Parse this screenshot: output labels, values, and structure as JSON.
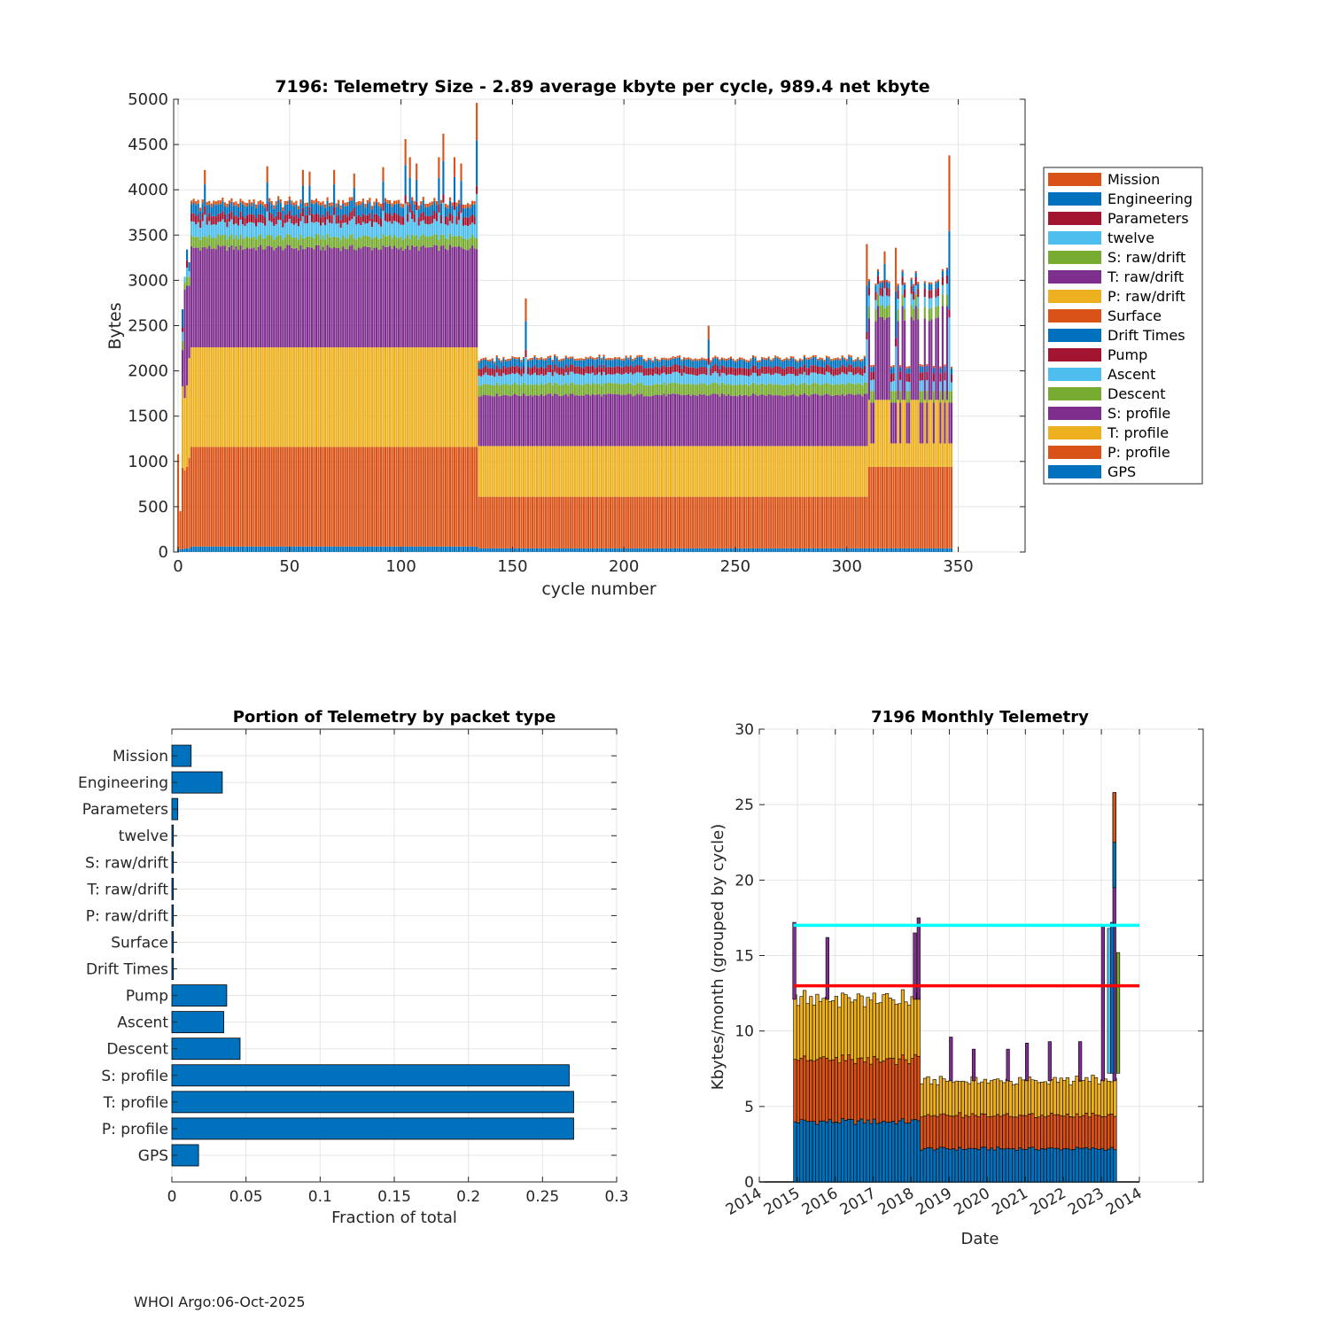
{
  "footer": "WHOI Argo:06-Oct-2025",
  "colors": {
    "orange": "#d95319",
    "blue": "#0072bd",
    "darkred": "#a2142f",
    "lightblue": "#4dbeee",
    "green": "#77ac30",
    "purple": "#7e2f8e",
    "yellow": "#edb120",
    "cyan": "#00ffff",
    "red": "#ff0000"
  },
  "chart_data": [
    {
      "type": "bar",
      "stacked": true,
      "title": "7196: Telemetry Size - 2.89 average kbyte per cycle,  989.4 net kbyte",
      "xlabel": "cycle number",
      "ylabel": "Bytes",
      "xlim": [
        -2,
        380
      ],
      "ylim": [
        0,
        5000
      ],
      "xticks": [
        0,
        50,
        100,
        150,
        200,
        250,
        300,
        350
      ],
      "yticks": [
        0,
        500,
        1000,
        1500,
        2000,
        2500,
        3000,
        3500,
        4000,
        4500,
        5000
      ],
      "grid": true,
      "legend_position": "right",
      "legend": [
        "Mission",
        "Engineering",
        "Parameters",
        "twelve",
        "S: raw/drift",
        "T: raw/drift",
        "P: raw/drift",
        "Surface",
        "Drift Times",
        "Pump",
        "Ascent",
        "Descent",
        "S: profile",
        "T: profile",
        "P: profile",
        "GPS"
      ],
      "legend_colors": [
        "#d95319",
        "#0072bd",
        "#a2142f",
        "#4dbeee",
        "#77ac30",
        "#7e2f8e",
        "#edb120",
        "#d95319",
        "#0072bd",
        "#a2142f",
        "#4dbeee",
        "#77ac30",
        "#7e2f8e",
        "#edb120",
        "#d95319",
        "#0072bd"
      ],
      "segments": [
        {
          "from": 6,
          "to": 134,
          "GPS": 60,
          "P_profile": 1100,
          "T_profile": 1100,
          "S_profile": 1110,
          "Descent": 120,
          "Ascent": 150,
          "Pump": 90,
          "Engineering": 110,
          "Mission": 40
        },
        {
          "from": 135,
          "to": 309,
          "GPS": 40,
          "P_profile": 570,
          "T_profile": 560,
          "S_profile": 570,
          "Descent": 120,
          "Ascent": 110,
          "Pump": 80,
          "Engineering": 80,
          "Mission": 20
        },
        {
          "from": 310,
          "to": 347,
          "GPS": 40,
          "P_profile": 900,
          "T_profile": 740,
          "S_profile": 900,
          "Descent": 130,
          "Ascent": 110,
          "Pump": 90,
          "Engineering": 60,
          "Mission": 20
        }
      ],
      "spikes": [
        {
          "cycle": 12,
          "total": 4220
        },
        {
          "cycle": 40,
          "total": 4260
        },
        {
          "cycle": 56,
          "total": 4220
        },
        {
          "cycle": 59,
          "total": 4200
        },
        {
          "cycle": 70,
          "total": 4220
        },
        {
          "cycle": 79,
          "total": 4180
        },
        {
          "cycle": 92,
          "total": 4250
        },
        {
          "cycle": 102,
          "total": 4560
        },
        {
          "cycle": 104,
          "total": 4360
        },
        {
          "cycle": 107,
          "total": 4290
        },
        {
          "cycle": 117,
          "total": 4360
        },
        {
          "cycle": 119,
          "total": 4620
        },
        {
          "cycle": 124,
          "total": 4360
        },
        {
          "cycle": 127,
          "total": 4290
        },
        {
          "cycle": 134,
          "total": 4960
        },
        {
          "cycle": 156,
          "total": 2800
        },
        {
          "cycle": 238,
          "total": 2500
        },
        {
          "cycle": 309,
          "total": 3400
        },
        {
          "cycle": 317,
          "total": 3320
        },
        {
          "cycle": 322,
          "total": 3360
        },
        {
          "cycle": 346,
          "total": 4380
        }
      ]
    },
    {
      "type": "bar",
      "orientation": "horizontal",
      "title": "Portion of Telemetry by packet type",
      "xlabel": "Fraction of total",
      "xlim": [
        0,
        0.3
      ],
      "xticks": [
        0,
        0.05,
        0.1,
        0.15,
        0.2,
        0.25,
        0.3
      ],
      "xtick_labels": [
        "0",
        "0.05",
        "0.1",
        "0.15",
        "0.2",
        "0.25",
        "0.3"
      ],
      "grid": true,
      "categories": [
        "Mission",
        "Engineering",
        "Parameters",
        "twelve",
        "S: raw/drift",
        "T: raw/drift",
        "P: raw/drift",
        "Surface",
        "Drift Times",
        "Pump",
        "Ascent",
        "Descent",
        "S: profile",
        "T: profile",
        "P: profile",
        "GPS"
      ],
      "values": [
        0.013,
        0.034,
        0.004,
        0.001,
        0.001,
        0.001,
        0.001,
        0.001,
        0.001,
        0.037,
        0.035,
        0.046,
        0.268,
        0.271,
        0.271,
        0.018
      ]
    },
    {
      "type": "bar",
      "stacked": true,
      "title": "7196 Monthly Telemetry",
      "xlabel": "Date",
      "ylabel": "Kbytes/month (grouped by cycle)",
      "ylim": [
        0,
        30
      ],
      "yticks": [
        0,
        5,
        10,
        15,
        20,
        25,
        30
      ],
      "xtick_labels": [
        "2014",
        "2015",
        "2016",
        "2017",
        "2018",
        "2019",
        "2020",
        "2021",
        "2022",
        "2023",
        "2014"
      ],
      "grid": true,
      "reference_lines": [
        {
          "value": 17,
          "color": "cyan"
        },
        {
          "value": 13,
          "color": "red"
        }
      ],
      "phases": [
        {
          "from_year": 2014.9,
          "to_year": 2018.2,
          "GPS": 4.0,
          "P_profile": 4.1,
          "T_profile": 4.0
        },
        {
          "from_year": 2018.2,
          "to_year": 2023.2,
          "GPS": 2.2,
          "P_profile": 2.2,
          "T_profile": 2.3
        }
      ],
      "spikes": [
        {
          "year": 2014.88,
          "total": 17.2
        },
        {
          "year": 2015.75,
          "total": 16.2
        },
        {
          "year": 2018.05,
          "total": 16.5
        },
        {
          "year": 2018.15,
          "total": 17.5
        },
        {
          "year": 2019.0,
          "total": 9.6
        },
        {
          "year": 2019.6,
          "total": 8.8
        },
        {
          "year": 2020.5,
          "total": 8.8
        },
        {
          "year": 2021.0,
          "total": 9.2
        },
        {
          "year": 2021.6,
          "total": 9.3
        },
        {
          "year": 2022.4,
          "total": 9.3
        },
        {
          "year": 2023.0,
          "total": 17.0
        },
        {
          "year": 2023.3,
          "total": 25.8
        }
      ]
    }
  ]
}
